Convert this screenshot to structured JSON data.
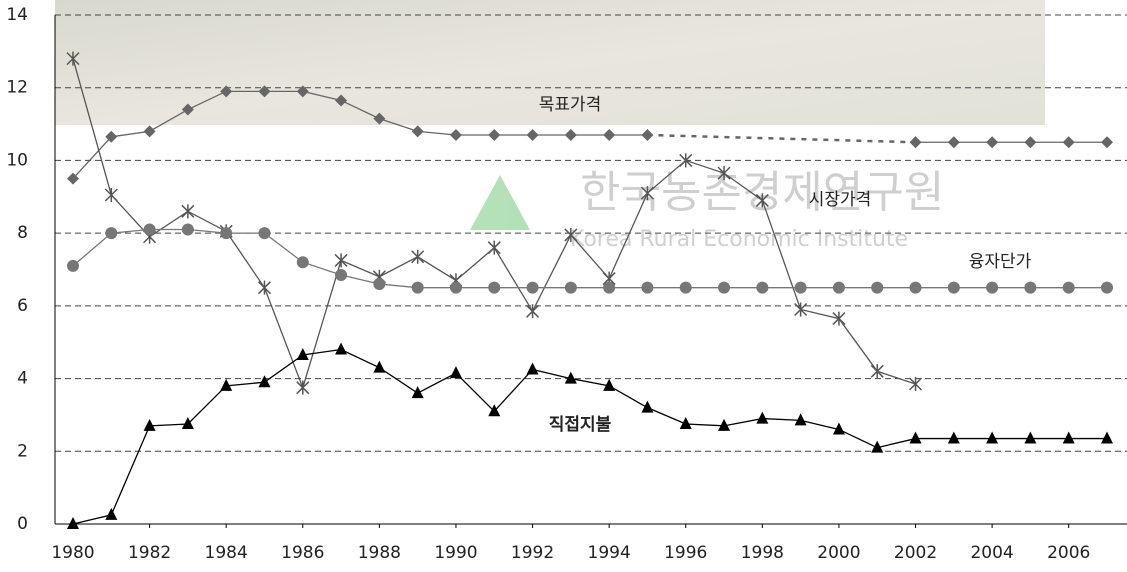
{
  "chart_data": {
    "type": "line",
    "watermark": {
      "title": "한국농촌경제연구원",
      "subtitle": "Korea Rural Economic Institute"
    },
    "x": [
      1980,
      1981,
      1982,
      1983,
      1984,
      1985,
      1986,
      1987,
      1988,
      1989,
      1990,
      1991,
      1992,
      1993,
      1994,
      1995,
      1996,
      1997,
      1998,
      1999,
      2000,
      2001,
      2002,
      2003,
      2004,
      2005,
      2006,
      2007
    ],
    "xlim": [
      1980,
      2007
    ],
    "xticks": [
      1980,
      1982,
      1984,
      1986,
      1988,
      1990,
      1992,
      1994,
      1996,
      1998,
      2000,
      2002,
      2004,
      2006
    ],
    "ylim": [
      0,
      14
    ],
    "yticks": [
      0,
      2,
      4,
      6,
      8,
      10,
      12,
      14
    ],
    "grid": true,
    "series": [
      {
        "name": "목표가격",
        "color": "#666666",
        "marker": "diamond",
        "values": [
          9.5,
          10.65,
          10.8,
          11.4,
          11.9,
          11.9,
          11.9,
          11.65,
          11.15,
          10.8,
          10.7,
          10.7,
          10.7,
          10.7,
          10.7,
          10.7,
          null,
          null,
          null,
          null,
          null,
          null,
          10.5,
          10.5,
          10.5,
          10.5,
          10.5,
          10.5
        ]
      },
      {
        "name": "시장가격",
        "color": "#555555",
        "marker": "asterisk",
        "values": [
          12.8,
          9.05,
          7.9,
          8.6,
          8.05,
          6.5,
          3.75,
          7.25,
          6.8,
          7.35,
          6.7,
          7.6,
          5.85,
          7.95,
          6.75,
          9.1,
          10.0,
          9.65,
          8.9,
          5.9,
          5.65,
          4.2,
          3.85,
          null,
          null,
          null,
          null,
          null
        ]
      },
      {
        "name": "융자단가",
        "color": "#777777",
        "marker": "circle",
        "values": [
          7.1,
          8.0,
          8.1,
          8.1,
          8.0,
          8.0,
          7.2,
          6.85,
          6.6,
          6.5,
          6.5,
          6.5,
          6.5,
          6.5,
          6.5,
          6.5,
          6.5,
          6.5,
          6.5,
          6.5,
          6.5,
          6.5,
          6.5,
          6.5,
          6.5,
          6.5,
          6.5,
          6.5
        ]
      },
      {
        "name": "직접지불",
        "color": "#000000",
        "marker": "triangle",
        "values": [
          0,
          0.25,
          2.7,
          2.75,
          3.8,
          3.9,
          4.65,
          4.8,
          4.3,
          3.6,
          4.15,
          3.1,
          4.25,
          4.0,
          3.8,
          3.2,
          2.75,
          2.7,
          2.9,
          2.85,
          2.6,
          2.1,
          2.35,
          2.35,
          2.35,
          2.35,
          2.35,
          2.35
        ]
      }
    ]
  }
}
